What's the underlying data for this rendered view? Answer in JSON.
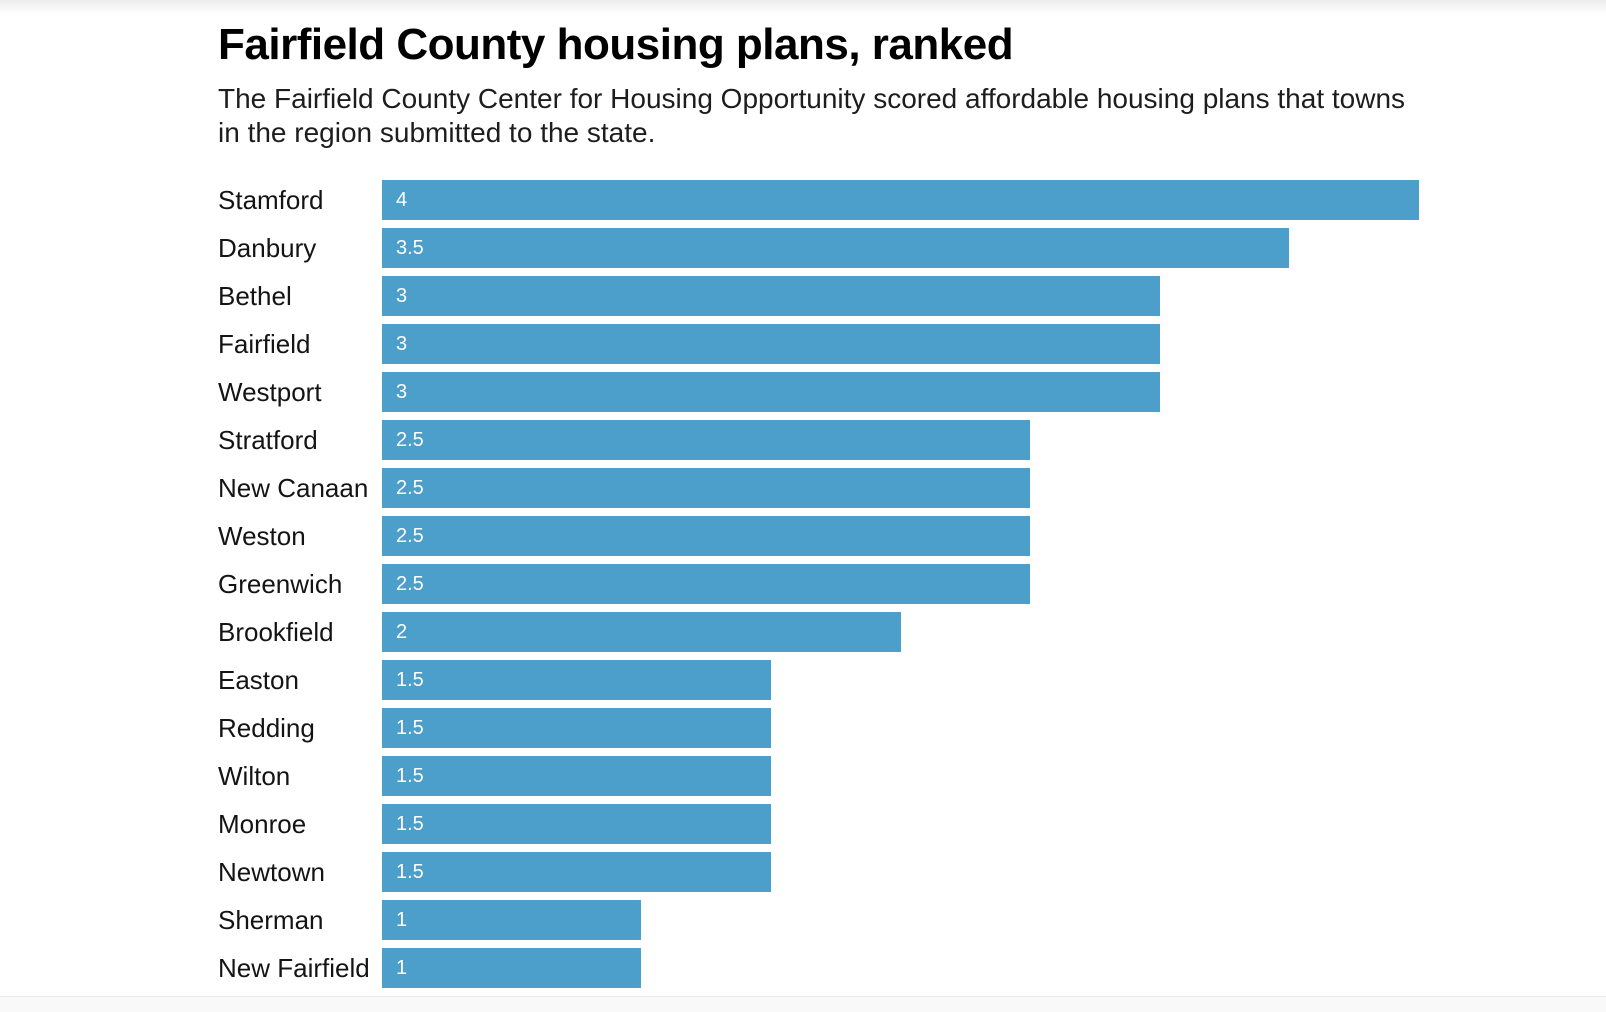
{
  "chart_data": {
    "type": "bar",
    "orientation": "horizontal",
    "title": "Fairfield County housing plans, ranked",
    "subtitle": "The Fairfield County Center for Housing Opportunity scored affordable housing plans that towns in the region submitted to the state.",
    "subtitle_lines": [
      "The Fairfield County Center for Housing Opportunity scored affordable housing plans that towns",
      "in the region submitted to the state."
    ],
    "categories": [
      "Stamford",
      "Danbury",
      "Bethel",
      "Fairfield",
      "Westport",
      "Stratford",
      "New Canaan",
      "Weston",
      "Greenwich",
      "Brookfield",
      "Easton",
      "Redding",
      "Wilton",
      "Monroe",
      "Newtown",
      "Sherman",
      "New Fairfield"
    ],
    "values": [
      4,
      3.5,
      3,
      3,
      3,
      2.5,
      2.5,
      2.5,
      2.5,
      2,
      1.5,
      1.5,
      1.5,
      1.5,
      1.5,
      1,
      1
    ],
    "xlim": [
      0,
      4
    ],
    "bar_color": "#4C9FCB",
    "value_label_color": "#ffffff",
    "value_label_position": "inside-left",
    "grid": false,
    "legend": false,
    "axis_ticks_shown": false
  }
}
